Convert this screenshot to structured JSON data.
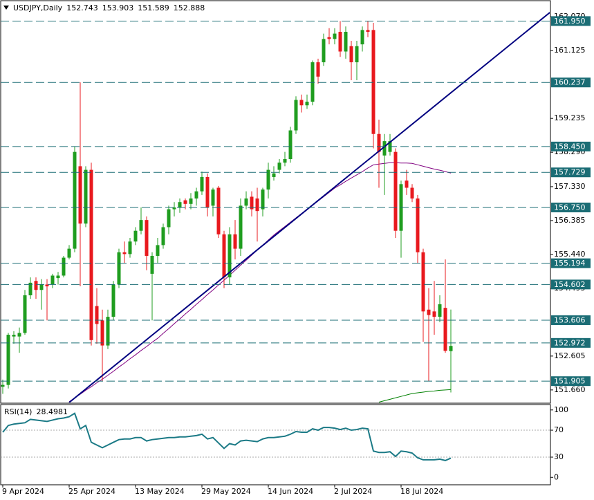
{
  "chart_data": [
    {
      "type": "candlestick",
      "symbol": "USDJPY,Daily",
      "categories": [
        "9 Apr 2024",
        null,
        null,
        null,
        null,
        null,
        null,
        null,
        null,
        null,
        null,
        null,
        "25 Apr 2024",
        null,
        null,
        null,
        null,
        null,
        null,
        null,
        null,
        null,
        null,
        null,
        "13 May 2024",
        null,
        null,
        null,
        null,
        null,
        null,
        null,
        null,
        null,
        null,
        null,
        "29 May 2024",
        null,
        null,
        null,
        null,
        null,
        null,
        null,
        null,
        null,
        null,
        null,
        "14 Jun 2024",
        null,
        null,
        null,
        null,
        null,
        null,
        null,
        null,
        null,
        null,
        null,
        "2 Jul 2024",
        null,
        null,
        null,
        null,
        null,
        null,
        null,
        null,
        null,
        null,
        null,
        "18 Jul 2024",
        null,
        null,
        null,
        null,
        null,
        null,
        null,
        null,
        null
      ],
      "open": [
        151.75,
        151.8,
        153.15,
        153.15,
        153.25,
        154.3,
        154.7,
        154.45,
        154.6,
        154.6,
        154.78,
        154.85,
        155.35,
        155.6,
        157.9,
        156.3,
        157.8,
        154.0,
        153.6,
        152.9,
        153.7,
        154.6,
        155.5,
        155.45,
        155.8,
        156.1,
        156.4,
        154.9,
        155.4,
        155.7,
        156.2,
        156.7,
        156.75,
        156.95,
        156.85,
        157.0,
        157.2,
        157.6,
        156.8,
        157.3,
        156.0,
        154.8,
        156.0,
        155.6,
        156.8,
        157.05,
        157.0,
        156.7,
        157.25,
        157.6,
        157.8,
        158.0,
        158.1,
        158.9,
        159.75,
        159.6,
        159.7,
        160.8,
        160.8,
        161.5,
        161.45,
        161.65,
        161.1,
        161.25,
        160.8,
        161.3,
        161.7,
        161.7,
        158.8,
        158.2,
        158.3,
        158.3,
        156.1,
        157.5,
        157.3,
        157.0,
        155.5,
        153.9,
        153.85,
        153.7,
        153.95,
        152.743
      ],
      "high": [
        151.95,
        153.25,
        153.3,
        153.4,
        154.45,
        154.8,
        154.8,
        154.75,
        154.75,
        154.9,
        154.95,
        155.4,
        155.7,
        158.45,
        160.24,
        157.9,
        158.0,
        154.5,
        153.9,
        153.9,
        154.7,
        155.6,
        155.8,
        155.9,
        156.2,
        156.75,
        156.5,
        155.5,
        155.9,
        156.3,
        156.8,
        156.9,
        157.0,
        157.0,
        157.15,
        157.3,
        157.75,
        157.7,
        157.3,
        157.35,
        156.1,
        156.2,
        156.4,
        157.0,
        157.2,
        157.2,
        157.3,
        157.3,
        158.0,
        157.9,
        158.1,
        158.3,
        159.0,
        159.85,
        159.9,
        159.9,
        160.85,
        160.9,
        161.6,
        161.75,
        161.75,
        161.95,
        161.8,
        161.4,
        161.4,
        161.8,
        161.95,
        161.9,
        159.2,
        158.8,
        158.8,
        158.4,
        157.5,
        157.8,
        157.4,
        157.1,
        155.6,
        154.5,
        154.7,
        154.3,
        155.3,
        153.903
      ],
      "low": [
        151.55,
        151.7,
        152.95,
        152.7,
        153.2,
        154.2,
        154.2,
        153.9,
        153.6,
        154.5,
        154.6,
        154.8,
        155.3,
        155.5,
        154.55,
        156.2,
        152.9,
        152.95,
        151.9,
        152.8,
        153.6,
        154.5,
        155.2,
        155.35,
        155.7,
        156.0,
        155.0,
        153.6,
        155.2,
        155.6,
        156.0,
        156.5,
        156.6,
        156.7,
        156.7,
        156.8,
        157.1,
        156.5,
        156.5,
        155.9,
        154.5,
        154.6,
        155.3,
        155.4,
        156.7,
        156.5,
        155.8,
        156.5,
        157.0,
        157.5,
        157.7,
        157.9,
        158.0,
        158.8,
        159.4,
        159.5,
        159.6,
        160.2,
        160.7,
        161.3,
        161.3,
        160.95,
        160.9,
        160.3,
        160.3,
        161.1,
        161.5,
        158.4,
        157.3,
        157.1,
        158.2,
        155.9,
        155.35,
        157.1,
        156.9,
        155.2,
        153.0,
        151.9,
        153.2,
        153.55,
        152.7,
        151.589
      ],
      "close": [
        151.8,
        153.2,
        153.2,
        153.25,
        154.3,
        154.65,
        154.45,
        154.6,
        154.55,
        154.85,
        154.85,
        155.35,
        155.6,
        158.3,
        156.3,
        157.8,
        153.05,
        153.5,
        152.9,
        153.7,
        154.6,
        155.5,
        155.45,
        155.8,
        156.1,
        156.4,
        155.4,
        155.4,
        155.7,
        156.2,
        156.7,
        156.75,
        156.9,
        156.85,
        157.0,
        157.2,
        157.6,
        156.75,
        157.25,
        156.0,
        154.8,
        156.0,
        155.6,
        156.8,
        157.0,
        156.7,
        156.65,
        157.25,
        157.8,
        157.7,
        158.0,
        158.1,
        158.9,
        159.75,
        159.6,
        159.7,
        160.8,
        160.4,
        161.45,
        161.45,
        161.6,
        161.1,
        161.65,
        160.8,
        161.25,
        161.7,
        161.65,
        158.8,
        158.3,
        158.6,
        158.6,
        156.1,
        157.4,
        157.3,
        157.0,
        155.5,
        153.85,
        153.75,
        153.7,
        154.05,
        152.75,
        152.888
      ],
      "up_color": "#1f9d1f",
      "down_color": "#e8191e",
      "ylim": [
        151.31,
        162.46
      ],
      "yticks": [
        {
          "value": 162.07,
          "label": "162.070"
        },
        161.125,
        159.235,
        {
          "value": 158.29,
          "label": "158.290"
        },
        {
          "value": 157.33,
          "label": "157.330"
        },
        156.385,
        {
          "value": 155.44,
          "label": "155.440"
        },
        154.495,
        152.605,
        {
          "value": 151.66,
          "label": "151.660"
        }
      ],
      "levels": [
        {
          "value": 161.95,
          "label": "161.950"
        },
        160.237,
        {
          "value": 158.45,
          "label": "158.450"
        },
        157.729,
        {
          "value": 156.75,
          "label": "156.750"
        },
        155.194,
        154.602,
        153.606,
        152.972,
        151.905
      ],
      "level_color": "#1b6d75",
      "moving_averages": [
        {
          "color": "#800080",
          "values": [
            null,
            null,
            null,
            null,
            null,
            null,
            null,
            null,
            null,
            null,
            null,
            null,
            151.33,
            151.44,
            151.54,
            151.65,
            151.75,
            151.86,
            151.96,
            152.07,
            152.18,
            152.3,
            152.41,
            152.53,
            152.64,
            152.76,
            152.87,
            152.99,
            153.1,
            153.24,
            153.37,
            153.51,
            153.64,
            153.78,
            153.91,
            154.05,
            154.18,
            154.32,
            154.45,
            154.59,
            154.72,
            154.86,
            155.0,
            155.14,
            155.28,
            155.42,
            155.56,
            155.7,
            155.84,
            155.98,
            156.1,
            156.22,
            156.34,
            156.46,
            156.58,
            156.69,
            156.81,
            156.93,
            157.05,
            157.17,
            157.29,
            157.38,
            157.48,
            157.57,
            157.66,
            157.75,
            157.85,
            157.94,
            157.96,
            157.98,
            158.0,
            158.0,
            157.99,
            157.99,
            157.98,
            157.94,
            157.9,
            157.86,
            157.82,
            157.79,
            157.75,
            157.71
          ]
        },
        {
          "color": "#008000",
          "values": [
            null,
            null,
            null,
            null,
            null,
            null,
            null,
            null,
            null,
            null,
            null,
            null,
            null,
            null,
            null,
            null,
            null,
            null,
            null,
            null,
            null,
            null,
            null,
            null,
            null,
            null,
            null,
            null,
            null,
            null,
            null,
            null,
            null,
            null,
            null,
            null,
            null,
            null,
            null,
            null,
            null,
            null,
            null,
            null,
            null,
            null,
            null,
            null,
            null,
            null,
            null,
            null,
            null,
            null,
            null,
            null,
            null,
            null,
            null,
            null,
            null,
            null,
            null,
            null,
            null,
            null,
            null,
            null,
            151.32,
            151.36,
            151.4,
            151.44,
            151.48,
            151.52,
            151.56,
            151.58,
            151.6,
            151.62,
            151.63,
            151.65,
            151.66,
            151.67
          ]
        }
      ],
      "trendline": {
        "color": "#000080",
        "x": [
          12,
          98.9
        ],
        "values": [
          151.31,
          162.19
        ]
      }
    },
    {
      "type": "line",
      "title": "RSI(14)",
      "color": "#1b7a86",
      "values": [
        67,
        77,
        79,
        80,
        81,
        86,
        85,
        84,
        83,
        85,
        87,
        88,
        90,
        95,
        72,
        77,
        52,
        48,
        44,
        48,
        52,
        56,
        57,
        57,
        59,
        59,
        54,
        56,
        57,
        58,
        59,
        59,
        60,
        60,
        61,
        62,
        64,
        57,
        59,
        51,
        43,
        50,
        48,
        54,
        55,
        54,
        53,
        57,
        59,
        59,
        60,
        61,
        64,
        68,
        67,
        67,
        72,
        70,
        74,
        74,
        73,
        71,
        73,
        70,
        71,
        73,
        72,
        39,
        37,
        37,
        38,
        31,
        39,
        38,
        36,
        29,
        26,
        26,
        26,
        27,
        25,
        28.4981
      ],
      "ylim": [
        -10,
        108
      ],
      "yticks": [
        100,
        70,
        30,
        0
      ],
      "levels": [
        70,
        30
      ]
    }
  ]
}
